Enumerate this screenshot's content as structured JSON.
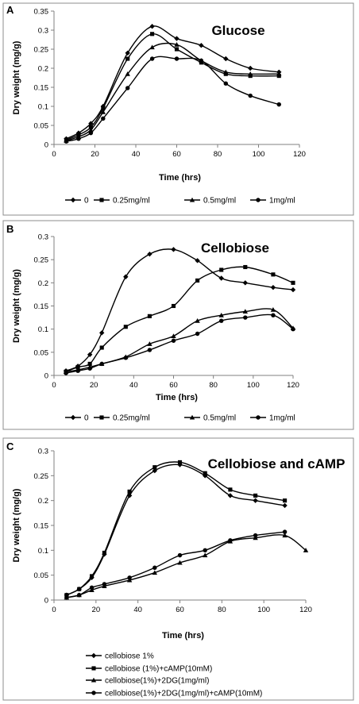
{
  "chart_data": [
    {
      "panel_label": "A",
      "type": "line",
      "title": "Glucose",
      "xlabel": "Time (hrs)",
      "ylabel": "Dry  weight (mg/g)",
      "xlim": [
        0,
        120
      ],
      "ylim": [
        0,
        0.35
      ],
      "xticks": [
        "0",
        "20",
        "40",
        "60",
        "80",
        "100",
        "120"
      ],
      "yticks": [
        "0",
        "0.05",
        "0.1",
        "0.15",
        "0.2",
        "0.25",
        "0.3",
        "0.35"
      ],
      "legend_position": "bottom",
      "grid": false,
      "series": [
        {
          "name": "0",
          "marker": "diamond",
          "x": [
            6,
            12,
            18,
            24,
            36,
            48,
            60,
            72,
            84,
            96,
            110
          ],
          "y": [
            0.015,
            0.03,
            0.055,
            0.1,
            0.24,
            0.31,
            0.278,
            0.26,
            0.225,
            0.2,
            0.19
          ]
        },
        {
          "name": "0.25mg/ml",
          "marker": "square",
          "x": [
            6,
            12,
            18,
            24,
            36,
            48,
            60,
            72,
            84,
            96,
            110
          ],
          "y": [
            0.012,
            0.025,
            0.045,
            0.095,
            0.225,
            0.29,
            0.25,
            0.215,
            0.185,
            0.18,
            0.18
          ]
        },
        {
          "name": "0.5mg/ml",
          "marker": "triangle",
          "x": [
            6,
            12,
            18,
            24,
            36,
            48,
            60,
            72,
            84,
            96,
            110
          ],
          "y": [
            0.01,
            0.02,
            0.038,
            0.085,
            0.185,
            0.255,
            0.262,
            0.22,
            0.19,
            0.185,
            0.185
          ]
        },
        {
          "name": "1mg/ml",
          "marker": "circle",
          "x": [
            6,
            12,
            18,
            24,
            36,
            48,
            60,
            72,
            84,
            96,
            110
          ],
          "y": [
            0.008,
            0.015,
            0.03,
            0.068,
            0.148,
            0.225,
            0.225,
            0.22,
            0.16,
            0.128,
            0.105
          ]
        }
      ]
    },
    {
      "panel_label": "B",
      "type": "line",
      "title": "Cellobiose",
      "xlabel": "Time (hrs)",
      "ylabel": "Dry weight (mg/g)",
      "xlim": [
        0,
        120
      ],
      "ylim": [
        0,
        0.3
      ],
      "xticks": [
        "0",
        "20",
        "40",
        "60",
        "80",
        "100",
        "120"
      ],
      "yticks": [
        "0",
        "0.05",
        "0.1",
        "0.15",
        "0.2",
        "0.25",
        "0.3"
      ],
      "legend_position": "bottom",
      "grid": false,
      "series": [
        {
          "name": "0",
          "marker": "diamond",
          "x": [
            6,
            12,
            18,
            24,
            36,
            48,
            60,
            72,
            84,
            96,
            110,
            120
          ],
          "y": [
            0.01,
            0.02,
            0.045,
            0.092,
            0.213,
            0.262,
            0.272,
            0.248,
            0.21,
            0.2,
            0.19,
            0.185
          ]
        },
        {
          "name": "0.25mg/ml",
          "marker": "square",
          "x": [
            6,
            12,
            18,
            24,
            36,
            48,
            60,
            72,
            84,
            96,
            110,
            120
          ],
          "y": [
            0.008,
            0.018,
            0.025,
            0.06,
            0.105,
            0.128,
            0.15,
            0.205,
            0.228,
            0.234,
            0.218,
            0.2
          ]
        },
        {
          "name": "0.5mg/ml",
          "marker": "triangle",
          "x": [
            6,
            12,
            18,
            24,
            36,
            48,
            60,
            72,
            84,
            96,
            110,
            120
          ],
          "y": [
            0.008,
            0.012,
            0.018,
            0.025,
            0.04,
            0.068,
            0.085,
            0.118,
            0.13,
            0.138,
            0.142,
            0.102
          ]
        },
        {
          "name": "1mg/ml",
          "marker": "circle",
          "x": [
            6,
            12,
            18,
            24,
            36,
            48,
            60,
            72,
            84,
            96,
            110,
            120
          ],
          "y": [
            0.005,
            0.01,
            0.015,
            0.025,
            0.038,
            0.055,
            0.075,
            0.09,
            0.118,
            0.125,
            0.13,
            0.1
          ]
        }
      ]
    },
    {
      "panel_label": "C",
      "type": "line",
      "title": "Cellobiose and cAMP",
      "xlabel": "Time (hrs)",
      "ylabel": "Dry weight (mg/g)",
      "xlim": [
        0,
        120
      ],
      "ylim": [
        0,
        0.3
      ],
      "xticks": [
        "0",
        "20",
        "40",
        "60",
        "80",
        "100",
        "120"
      ],
      "yticks": [
        "0",
        "0.05",
        "0.1",
        "0.15",
        "0.2",
        "0.25",
        "0.3"
      ],
      "legend_position": "bottom",
      "grid": false,
      "series": [
        {
          "name": "cellobiose 1%",
          "marker": "diamond",
          "x": [
            6,
            12,
            18,
            24,
            36,
            48,
            60,
            72,
            84,
            96,
            110
          ],
          "y": [
            0.01,
            0.022,
            0.045,
            0.092,
            0.21,
            0.26,
            0.272,
            0.25,
            0.21,
            0.2,
            0.19
          ]
        },
        {
          "name": "cellobiose (1%)+cAMP(10mM)",
          "marker": "square",
          "x": [
            6,
            12,
            18,
            24,
            36,
            48,
            60,
            72,
            84,
            96,
            110
          ],
          "y": [
            0.01,
            0.022,
            0.048,
            0.095,
            0.218,
            0.267,
            0.277,
            0.255,
            0.222,
            0.21,
            0.2
          ]
        },
        {
          "name": "cellobiose(1%)+2DG(1mg/ml)",
          "marker": "triangle",
          "x": [
            6,
            12,
            18,
            24,
            36,
            48,
            60,
            72,
            84,
            96,
            110,
            120
          ],
          "y": [
            0.005,
            0.01,
            0.02,
            0.028,
            0.04,
            0.055,
            0.075,
            0.09,
            0.118,
            0.125,
            0.13,
            0.1
          ]
        },
        {
          "name": "cellobiose(1%)+2DG(1mg/ml)+cAMP(10mM)",
          "marker": "circle",
          "x": [
            6,
            12,
            18,
            24,
            36,
            48,
            60,
            72,
            84,
            96,
            110
          ],
          "y": [
            0.005,
            0.01,
            0.025,
            0.032,
            0.045,
            0.065,
            0.09,
            0.1,
            0.12,
            0.13,
            0.137
          ]
        }
      ]
    }
  ]
}
